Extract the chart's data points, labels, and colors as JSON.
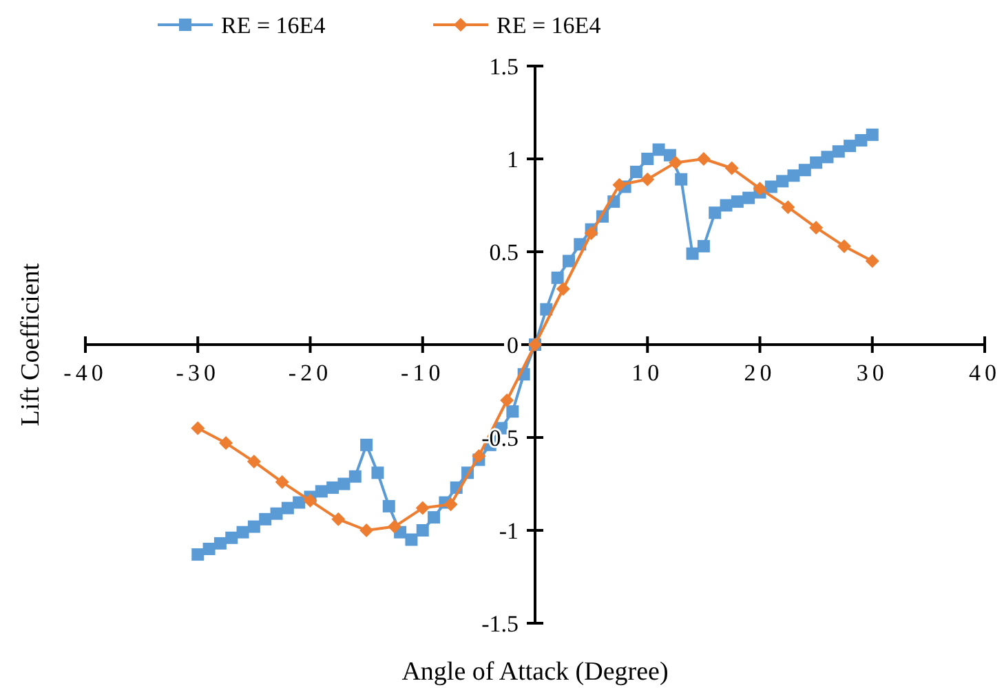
{
  "chart_data": {
    "type": "line",
    "xlabel": "Angle of Attack (Degree)",
    "ylabel": "Lift Coefficient",
    "xlim": [
      -40,
      40
    ],
    "xticks": [
      -40,
      -30,
      -20,
      -10,
      {
        "value": 0,
        "label": null
      },
      10,
      20,
      30,
      40
    ],
    "ylim": [
      -1.5,
      1.5
    ],
    "yticks": [
      -1.5,
      -1,
      -0.5,
      0,
      0.5,
      1,
      1.5
    ],
    "grid": false,
    "legend": "top",
    "line_style": "solid",
    "series": [
      {
        "name": "RE = 16E4",
        "color": "#5b9bd5",
        "marker": "square",
        "x": [
          -30,
          -29,
          -28,
          -27,
          -26,
          -25,
          -24,
          -23,
          -22,
          -21,
          -20,
          -19,
          -18,
          -17,
          -16,
          -15,
          -14,
          -13,
          -12,
          -11,
          -10,
          -9,
          -8,
          -7,
          -6,
          -5,
          -4,
          -3,
          -2,
          -1,
          0,
          1,
          2,
          3,
          4,
          5,
          6,
          7,
          8,
          9,
          10,
          11,
          12,
          13,
          14,
          15,
          16,
          17,
          18,
          19,
          20,
          21,
          22,
          23,
          24,
          25,
          26,
          27,
          28,
          29,
          30
        ],
        "values": [
          -1.13,
          -1.1,
          -1.07,
          -1.04,
          -1.01,
          -0.98,
          -0.94,
          -0.91,
          -0.88,
          -0.85,
          -0.82,
          -0.79,
          -0.77,
          -0.75,
          -0.71,
          -0.54,
          -0.69,
          -0.87,
          -1.01,
          -1.05,
          -1.0,
          -0.93,
          -0.85,
          -0.77,
          -0.69,
          -0.62,
          -0.54,
          -0.45,
          -0.36,
          -0.16,
          0,
          0.19,
          0.36,
          0.45,
          0.54,
          0.62,
          0.69,
          0.77,
          0.85,
          0.93,
          1.0,
          1.05,
          1.02,
          0.89,
          0.49,
          0.53,
          0.71,
          0.75,
          0.77,
          0.79,
          0.82,
          0.85,
          0.88,
          0.91,
          0.94,
          0.98,
          1.01,
          1.04,
          1.07,
          1.1,
          1.13
        ]
      },
      {
        "name": "RE = 16E4",
        "color": "#ed7d31",
        "marker": "diamond",
        "x": [
          -30,
          -27.5,
          -25,
          -22.5,
          -20,
          -17.5,
          -15,
          -12.5,
          -10,
          -7.5,
          -5,
          -2.5,
          0,
          2.5,
          5,
          7.5,
          10,
          12.5,
          15,
          17.5,
          20,
          22.5,
          25,
          27.5,
          30
        ],
        "values": [
          -0.45,
          -0.53,
          -0.63,
          -0.74,
          -0.84,
          -0.94,
          -1.0,
          -0.98,
          -0.88,
          -0.86,
          -0.6,
          -0.3,
          0,
          0.3,
          0.6,
          0.86,
          0.89,
          0.98,
          1.0,
          0.95,
          0.84,
          0.74,
          0.63,
          0.53,
          0.45
        ]
      }
    ]
  }
}
